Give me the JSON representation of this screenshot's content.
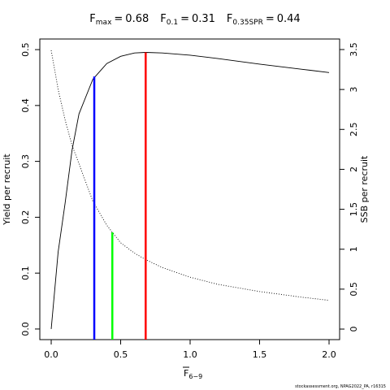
{
  "chart_data": {
    "type": "line",
    "title_terms": [
      {
        "symbol": "F",
        "subscript": "max",
        "relation": "=",
        "value": 0.68,
        "color": "#ff0000",
        "line_top": 0.495
      },
      {
        "symbol": "F",
        "subscript": "0.1",
        "relation": "=",
        "value": 0.31,
        "color": "#0000ff",
        "line_top": 0.452
      },
      {
        "symbol": "F",
        "subscript": "0.35SPR",
        "relation": "=",
        "value": 0.44,
        "color": "#00ff00",
        "line_top": 0.173
      }
    ],
    "xlabel": {
      "symbol": "F",
      "subscript": "6−9"
    },
    "ylabel": "Yield per recruit",
    "y2label": "SSB per recruit",
    "footer": "stockassessment.org, NPAG2022_PA, r16315",
    "x": [
      0,
      0.05,
      0.1,
      0.15,
      0.2,
      0.3,
      0.4,
      0.5,
      0.6,
      0.68,
      0.8,
      1.0,
      1.2,
      1.5,
      1.8,
      2.0
    ],
    "series": [
      {
        "color": "#000000",
        "dash": "solid",
        "axis": "y",
        "values": [
          0,
          0.138,
          0.225,
          0.32,
          0.385,
          0.447,
          0.475,
          0.488,
          0.494,
          0.495,
          0.494,
          0.49,
          0.484,
          0.474,
          0.465,
          0.459
        ]
      },
      {
        "color": "#000000",
        "dash": "dotted",
        "axis": "y2",
        "values": [
          3.49,
          3.0,
          2.62,
          2.3,
          2.07,
          1.6,
          1.3,
          1.08,
          0.95,
          0.87,
          0.77,
          0.65,
          0.56,
          0.47,
          0.4,
          0.36
        ]
      }
    ],
    "xlim": [
      -0.082,
      2.076
    ],
    "ylim": [
      -0.019,
      0.519
    ],
    "y2lim": [
      -0.132,
      3.632
    ],
    "xticks": [
      {
        "value": 0,
        "label": "0.0"
      },
      0.5,
      {
        "value": 1,
        "label": "1.0"
      },
      1.5,
      {
        "value": 2,
        "label": "2.0"
      }
    ],
    "yticks": [
      {
        "value": 0,
        "label": "0.0"
      },
      0.1,
      0.2,
      0.3,
      0.4,
      0.5
    ],
    "y2ticks": [
      0,
      0.5,
      1,
      1.5,
      2,
      2.5,
      3,
      3.5
    ],
    "grid": false
  }
}
